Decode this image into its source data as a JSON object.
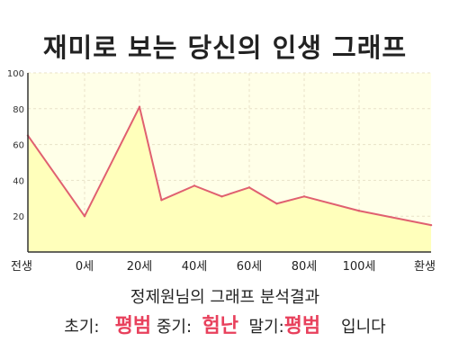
{
  "title": "재미로 보는 당신의 인생 그래프",
  "chart_data": {
    "type": "area",
    "title": "재미로 보는 당신의 인생 그래프",
    "ylim": [
      0,
      100
    ],
    "y_ticks": [
      20,
      40,
      60,
      80,
      100
    ],
    "x_tick_labels": [
      "전생",
      "0세",
      "20세",
      "40세",
      "60세",
      "80세",
      "100세",
      "환생"
    ],
    "series": [
      {
        "points": [
          {
            "x": "전생",
            "y": 65
          },
          {
            "x": "0세",
            "y": 20
          },
          {
            "x": "20세",
            "y": 81
          },
          {
            "x": "28세",
            "y": 29
          },
          {
            "x": "40세",
            "y": 37
          },
          {
            "x": "50세",
            "y": 31
          },
          {
            "x": "60세",
            "y": 36
          },
          {
            "x": "70세",
            "y": 27
          },
          {
            "x": "80세",
            "y": 31
          },
          {
            "x": "100세",
            "y": 23
          },
          {
            "x": "환생",
            "y": 15
          }
        ]
      }
    ],
    "grid": true,
    "colors": {
      "line": "#e06070",
      "fill": "#ffffbb",
      "plot_bg": "#ffffe8",
      "grid": "#e8e2c8"
    }
  },
  "caption": "정제원님의 그래프 분석결과",
  "result": {
    "early_label": "초기:",
    "early_value": "평범",
    "mid_label": "중기:",
    "mid_value": "험난",
    "late_label": "말기:",
    "late_value": "평범",
    "ending": "입니다"
  }
}
